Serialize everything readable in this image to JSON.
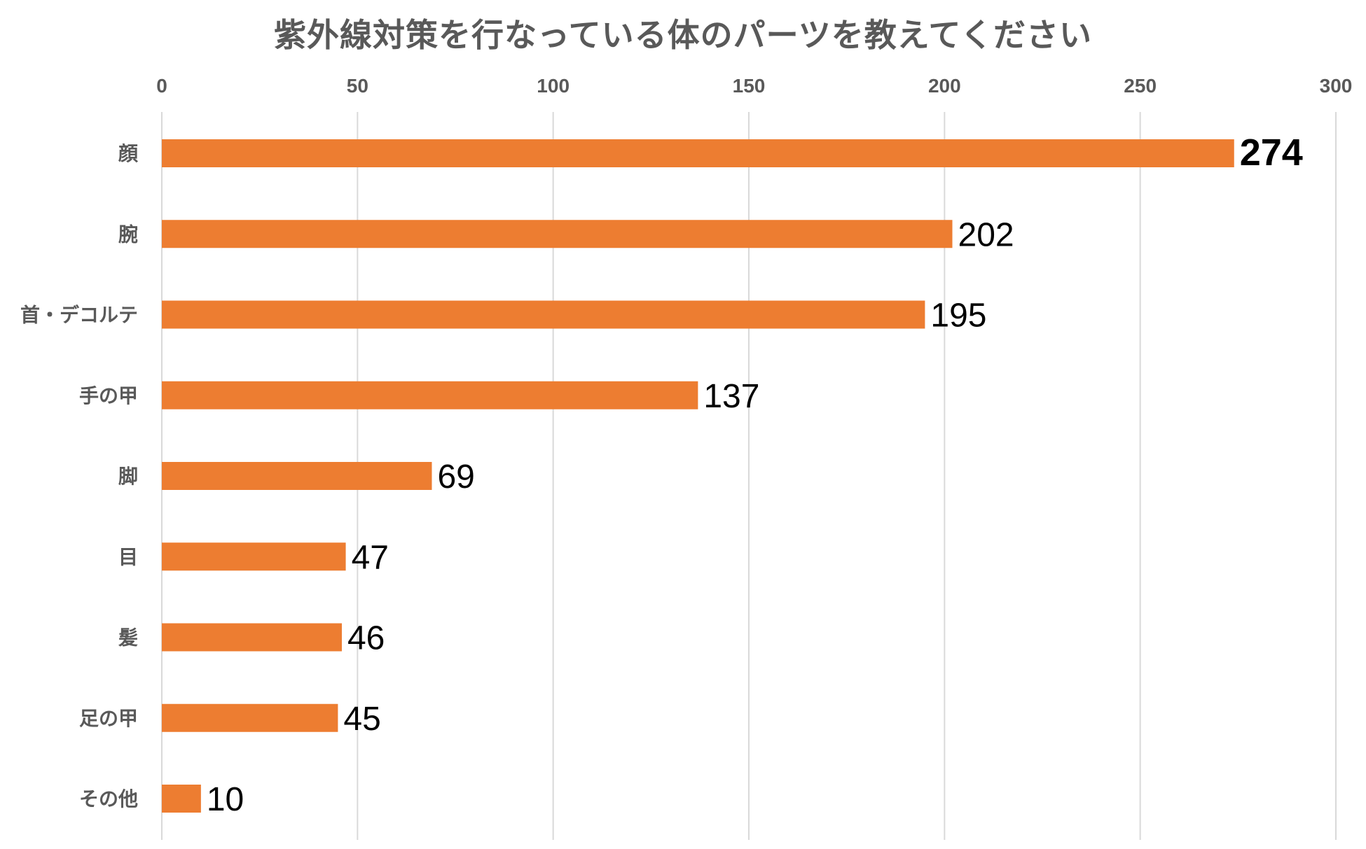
{
  "chart_data": {
    "type": "bar",
    "orientation": "horizontal",
    "title": "紫外線対策を行なっている体のパーツを教えてください",
    "categories": [
      "顔",
      "腕",
      "首・デコルテ",
      "手の甲",
      "脚",
      "目",
      "髪",
      "足の甲",
      "その他"
    ],
    "values": [
      274,
      202,
      195,
      137,
      69,
      47,
      46,
      45,
      10
    ],
    "xlim": [
      0,
      300
    ],
    "xticks": [
      0,
      50,
      100,
      150,
      200,
      250,
      300
    ],
    "x_axis_position": "top",
    "grid": true,
    "legend": "none",
    "bar_color": "#ED7D31",
    "data_labels": true
  }
}
